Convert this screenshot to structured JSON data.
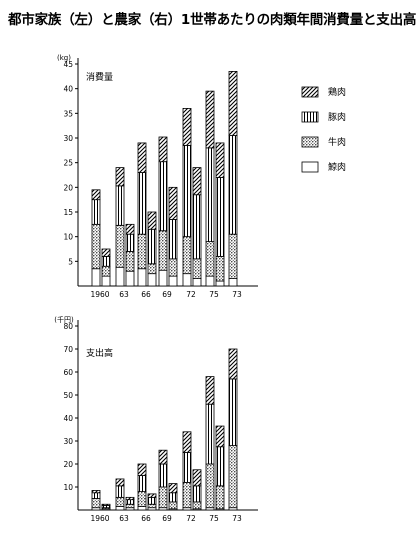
{
  "title": "都市家族（左）と農家（右）1世帯あたりの肉類年間消費量と支出高",
  "legend": [
    {
      "key": "chicken",
      "label": "鶏肉"
    },
    {
      "key": "pork",
      "label": "豚肉"
    },
    {
      "key": "beef",
      "label": "牛肉"
    },
    {
      "key": "whale",
      "label": "鯨肉"
    }
  ],
  "chart_data": [
    {
      "type": "bar",
      "title": "消費量",
      "ylabel": "(kg)",
      "ylim": [
        0,
        45
      ],
      "yticks": [
        5,
        10,
        15,
        20,
        25,
        30,
        35,
        40,
        45
      ],
      "categories": [
        "1960",
        "63",
        "66",
        "69",
        "72",
        "75",
        "73"
      ],
      "stacked": true,
      "groups": [
        "都市家族",
        "農家"
      ],
      "series": [
        {
          "name": "鯨肉",
          "group": "都市家族",
          "values": [
            3.5,
            3.8,
            3.5,
            3.2,
            2.5,
            2,
            1.5
          ]
        },
        {
          "name": "牛肉",
          "group": "都市家族",
          "values": [
            9,
            8.5,
            7,
            8,
            7.5,
            7,
            9
          ]
        },
        {
          "name": "豚肉",
          "group": "都市家族",
          "values": [
            5,
            8,
            12.5,
            14,
            18.5,
            19,
            20
          ]
        },
        {
          "name": "鶏肉",
          "group": "都市家族",
          "values": [
            2,
            3.7,
            6,
            5,
            7.5,
            11.5,
            13
          ]
        },
        {
          "name": "鯨肉",
          "group": "農家",
          "values": [
            2,
            3,
            2.5,
            2,
            1.5,
            1,
            null
          ]
        },
        {
          "name": "牛肉",
          "group": "農家",
          "values": [
            2,
            4,
            2,
            3.5,
            4,
            5,
            null
          ]
        },
        {
          "name": "豚肉",
          "group": "農家",
          "values": [
            2,
            3.5,
            7,
            8,
            13,
            16,
            null
          ]
        },
        {
          "name": "鶏肉",
          "group": "農家",
          "values": [
            1.5,
            2,
            3.5,
            6.5,
            5.5,
            7,
            null
          ]
        }
      ]
    },
    {
      "type": "bar",
      "title": "支出高",
      "ylabel": "(千円)",
      "ylim": [
        0,
        80
      ],
      "yticks": [
        10,
        20,
        30,
        40,
        50,
        60,
        70,
        80
      ],
      "categories": [
        "1960",
        "63",
        "66",
        "69",
        "72",
        "75",
        "73"
      ],
      "stacked": true,
      "groups": [
        "都市家族",
        "農家"
      ],
      "series": [
        {
          "name": "鯨肉",
          "group": "都市家族",
          "values": [
            1,
            1.5,
            1.5,
            1,
            1,
            1,
            1
          ]
        },
        {
          "name": "牛肉",
          "group": "都市家族",
          "values": [
            4,
            4,
            6.5,
            9,
            11,
            19,
            27
          ]
        },
        {
          "name": "豚肉",
          "group": "都市家族",
          "values": [
            2.5,
            5,
            7,
            10,
            13,
            26,
            29
          ]
        },
        {
          "name": "鶏肉",
          "group": "都市家族",
          "values": [
            1,
            3,
            5,
            6,
            9,
            12,
            13
          ]
        },
        {
          "name": "鯨肉",
          "group": "農家",
          "values": [
            0.5,
            1,
            1,
            0.5,
            0.5,
            0.5,
            null
          ]
        },
        {
          "name": "牛肉",
          "group": "農家",
          "values": [
            0.5,
            1.5,
            1.5,
            3,
            3,
            10,
            null
          ]
        },
        {
          "name": "豚肉",
          "group": "農家",
          "values": [
            1,
            2,
            3,
            4,
            7,
            17,
            null
          ]
        },
        {
          "name": "鶏肉",
          "group": "農家",
          "values": [
            0.5,
            1,
            1.5,
            4,
            7,
            9,
            null
          ]
        }
      ]
    }
  ]
}
